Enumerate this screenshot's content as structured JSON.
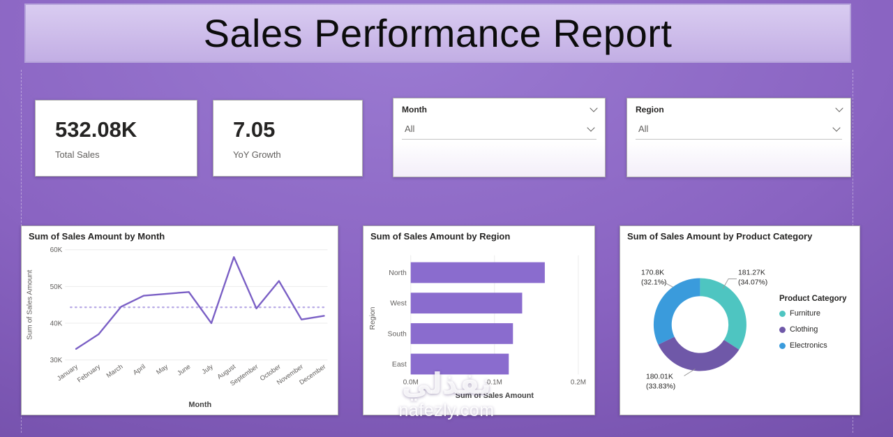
{
  "title": "Sales Performance Report",
  "kpis": [
    {
      "value": "532.08K",
      "label": "Total Sales"
    },
    {
      "value": "7.05",
      "label": "YoY Growth"
    }
  ],
  "slicers": [
    {
      "label": "Month",
      "value": "All"
    },
    {
      "label": "Region",
      "value": "All"
    }
  ],
  "watermark": {
    "arabic": "نفذلي",
    "domain": "nafezly.com"
  },
  "chart_data": [
    {
      "type": "line",
      "title": "Sum of Sales Amount by Month",
      "xlabel": "Month",
      "ylabel": "Sum of Sales Amount",
      "categories": [
        "January",
        "February",
        "March",
        "April",
        "May",
        "June",
        "July",
        "August",
        "September",
        "October",
        "November",
        "December"
      ],
      "values": [
        33000,
        37000,
        44500,
        47500,
        48000,
        48500,
        40000,
        58000,
        44000,
        51500,
        41000,
        42000
      ],
      "average_line": 44340,
      "ylim": [
        30000,
        60000
      ],
      "yticks": [
        {
          "value": 30000,
          "label": "30K"
        },
        {
          "value": 40000,
          "label": "40K"
        },
        {
          "value": 50000,
          "label": "50K"
        },
        {
          "value": 60000,
          "label": "60K"
        }
      ],
      "line_color": "#7a5fc5",
      "average_color": "#b9abe6",
      "grid": true,
      "legend_position": "none"
    },
    {
      "type": "bar",
      "title": "Sum of Sales Amount by Region",
      "xlabel": "Sum of Sales Amount",
      "ylabel": "Region",
      "orientation": "horizontal",
      "categories": [
        "North",
        "West",
        "South",
        "East"
      ],
      "values": [
        160000,
        133000,
        122000,
        117000
      ],
      "xlim": [
        0,
        200000
      ],
      "xticks": [
        {
          "value": 0,
          "label": "0.0M"
        },
        {
          "value": 100000,
          "label": "0.1M"
        },
        {
          "value": 200000,
          "label": "0.2M"
        }
      ],
      "bar_color": "#8a6cce",
      "grid": true,
      "legend_position": "none"
    },
    {
      "type": "pie",
      "subtype": "donut",
      "title": "Sum of Sales Amount by Product Category",
      "legend_title": "Product Category",
      "legend_position": "right",
      "segments": [
        {
          "name": "Furniture",
          "value": 181270,
          "pct": 34.07,
          "label_value": "181.27K",
          "label_pct": "(34.07%)",
          "color": "#4ec5c1"
        },
        {
          "name": "Clothing",
          "value": 180010,
          "pct": 33.83,
          "label_value": "180.01K",
          "label_pct": "(33.83%)",
          "color": "#6f58a8"
        },
        {
          "name": "Electronics",
          "value": 170800,
          "pct": 32.1,
          "label_value": "170.8K",
          "label_pct": "(32.1%)",
          "color": "#3a9bdc"
        }
      ]
    }
  ]
}
